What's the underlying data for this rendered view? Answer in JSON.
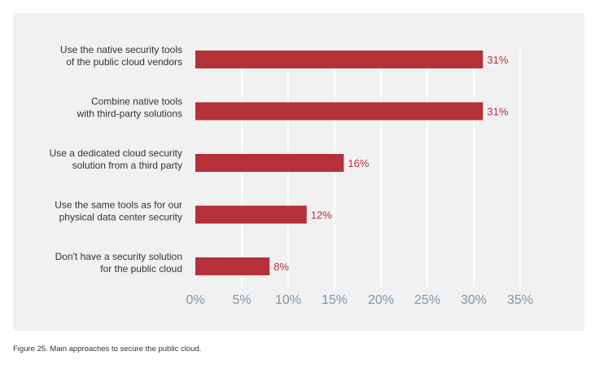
{
  "chart_data": {
    "type": "bar",
    "orientation": "horizontal",
    "categories": [
      [
        "Use the native security tools",
        "of the public cloud vendors"
      ],
      [
        "Combine native tools",
        "with third-party solutions"
      ],
      [
        "Use a dedicated cloud security",
        "solution from a third party"
      ],
      [
        "Use the same tools as for our",
        "physical data center security"
      ],
      [
        "Don't have a security solution",
        "for the public cloud"
      ]
    ],
    "values": [
      31,
      31,
      16,
      12,
      8
    ],
    "value_labels": [
      "31%",
      "31%",
      "16%",
      "12%",
      "8%"
    ],
    "xlim": [
      0,
      35
    ],
    "ticks": [
      0,
      5,
      10,
      15,
      20,
      25,
      30,
      35
    ],
    "tick_labels": [
      "0%",
      "5%",
      "10%",
      "15%",
      "20%",
      "25%",
      "30%",
      "35%"
    ],
    "grid": true,
    "bar_color": "#b5313a",
    "title": "",
    "xlabel": "",
    "ylabel": ""
  },
  "caption": "Figure 25. Main approaches to secure the public cloud."
}
